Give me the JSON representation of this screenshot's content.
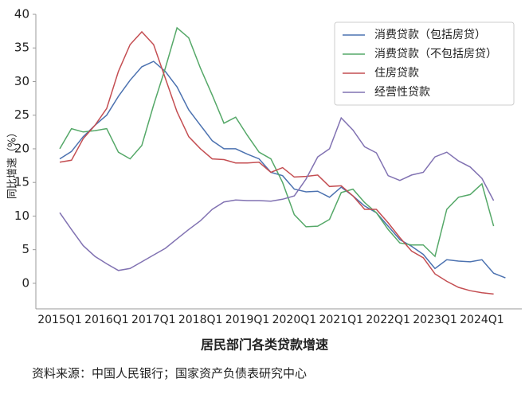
{
  "chart_data": {
    "type": "line",
    "y_label": "同比增速（%）",
    "caption": "居民部门各类贷款增速",
    "source": "资料来源：中国人民银行；国家资产负债表研究中心",
    "categories": [
      "2015Q1",
      null,
      null,
      null,
      "2016Q1",
      null,
      null,
      null,
      "2017Q1",
      null,
      null,
      null,
      "2018Q1",
      null,
      null,
      null,
      "2019Q1",
      null,
      null,
      null,
      "2020Q1",
      null,
      null,
      null,
      "2021Q1",
      null,
      null,
      null,
      "2022Q1",
      null,
      null,
      null,
      "2023Q1",
      null,
      null,
      null,
      "2024Q1",
      null,
      null
    ],
    "ylim": [
      -3.8,
      40
    ],
    "yticks": [
      0,
      5,
      10,
      15,
      20,
      25,
      30,
      35,
      40
    ],
    "grid": false,
    "legend": "upper right",
    "series": [
      {
        "name": "消费贷款（包括房贷）",
        "color": "#4c72b0",
        "values": [
          18.5,
          19.6,
          21.8,
          23.5,
          25,
          27.8,
          30.2,
          32.2,
          33,
          31.5,
          29.2,
          25.8,
          23.5,
          21.2,
          20,
          20,
          19.2,
          18.5,
          16.5,
          16,
          14,
          13.6,
          13.7,
          12.8,
          14.3,
          13,
          11.5,
          10.5,
          8.5,
          6.5,
          5.5,
          4.3,
          2.2,
          3.5,
          3.3,
          3.2,
          3.5,
          1.5,
          0.8
        ]
      },
      {
        "name": "消费贷款（不包括房贷）",
        "color": "#55a868",
        "values": [
          20,
          23,
          22.5,
          22.7,
          23,
          19.5,
          18.5,
          20.5,
          26.5,
          32,
          38,
          36.5,
          32,
          28,
          23.8,
          24.7,
          22,
          19.5,
          18.5,
          15,
          10.2,
          8.4,
          8.5,
          9.5,
          13.5,
          14,
          12,
          10.5,
          8,
          6,
          5.7,
          5.7,
          4,
          11,
          12.8,
          13.2,
          14.8,
          8.5,
          null
        ]
      },
      {
        "name": "住房贷款",
        "color": "#c44e52",
        "values": [
          18,
          18.3,
          21.5,
          23.5,
          26,
          31.5,
          35.5,
          37.4,
          35.5,
          30.5,
          25.5,
          21.8,
          20,
          18.5,
          18.4,
          17.9,
          17.9,
          18,
          16.5,
          17.2,
          15.8,
          15.9,
          16.1,
          14.4,
          14.5,
          13,
          11,
          11,
          9,
          6.8,
          4.8,
          3.8,
          1.4,
          0.3,
          -0.6,
          -1.1,
          -1.4,
          -1.6,
          null
        ]
      },
      {
        "name": "经营性贷款",
        "color": "#8172b2",
        "values": [
          10.5,
          8,
          5.6,
          4,
          2.9,
          1.9,
          2.2,
          3.2,
          4.2,
          5.2,
          6.6,
          8,
          9.3,
          11,
          12.1,
          12.4,
          12.3,
          12.3,
          12.2,
          12.5,
          13,
          15.5,
          18.8,
          20,
          24.6,
          22.8,
          20.3,
          19.4,
          16,
          15.3,
          16.1,
          16.5,
          18.8,
          19.5,
          18.2,
          17.3,
          15.6,
          12.3,
          null
        ]
      }
    ]
  }
}
